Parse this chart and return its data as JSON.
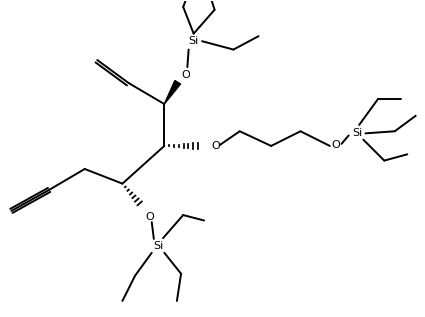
{
  "background_color": "#ffffff",
  "line_color": "#000000",
  "lw": 1.4,
  "fs": 8.0,
  "xlim": [
    0,
    10
  ],
  "ylim": [
    0,
    7.5
  ]
}
